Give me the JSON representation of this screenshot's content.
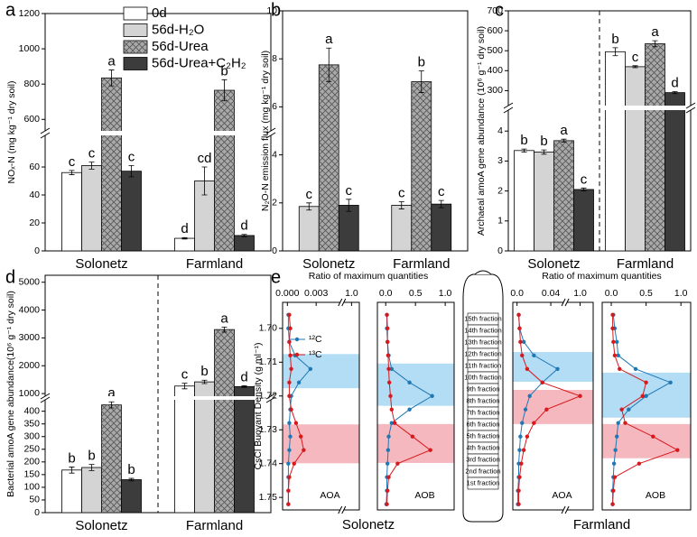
{
  "chart_data": [
    {
      "type": "bar",
      "panel_label": "a",
      "y_label": "NOₓ-N (mg kg⁻¹ dry soil)",
      "categories": [
        "Solonetz",
        "Farmland"
      ],
      "ylim": [
        0,
        1200
      ],
      "y_break": [
        82.6,
        535
      ],
      "yticks": [
        0,
        20,
        40,
        60,
        600,
        800,
        1000,
        1200
      ],
      "series": [
        {
          "name": "0d",
          "color": "#ffffff",
          "values": [
            56,
            9
          ],
          "errors": [
            1.5,
            0.5
          ],
          "letters": [
            "c",
            "d"
          ]
        },
        {
          "name": "56d-H₂O",
          "color": "#d4d4d4",
          "values": [
            61,
            50
          ],
          "errors": [
            2.5,
            10
          ],
          "letters": [
            "c",
            "cd"
          ]
        },
        {
          "name": "56d-Urea",
          "color": "#a9a9a9",
          "hatch": true,
          "values": [
            835,
            765
          ],
          "errors": [
            45,
            60
          ],
          "letters": [
            "a",
            "b"
          ]
        },
        {
          "name": "56d-Urea+C₂H₂",
          "color": "#3c3c3c",
          "values": [
            57,
            11
          ],
          "errors": [
            4,
            0.8
          ],
          "letters": [
            "c",
            "d"
          ]
        }
      ]
    },
    {
      "type": "bar",
      "panel_label": "b",
      "y_label": "N₂O-N emission flux (mg kg⁻¹ dry soil)",
      "categories": [
        "Solonetz",
        "Farmland"
      ],
      "ylim": [
        0,
        10
      ],
      "yticks": [
        0,
        2,
        4,
        6,
        8,
        10
      ],
      "series": [
        {
          "color": "#d4d4d4",
          "values": [
            1.85,
            1.9
          ],
          "errors": [
            0.15,
            0.15
          ],
          "letters": [
            "c",
            "c"
          ]
        },
        {
          "color": "#a9a9a9",
          "hatch": true,
          "values": [
            7.75,
            7.05
          ],
          "errors": [
            0.7,
            0.45
          ],
          "letters": [
            "a",
            "b"
          ]
        },
        {
          "color": "#3c3c3c",
          "values": [
            1.9,
            1.95
          ],
          "errors": [
            0.25,
            0.15
          ],
          "letters": [
            "c",
            "c"
          ]
        }
      ]
    },
    {
      "type": "bar",
      "panel_label": "c",
      "y_label": "Archaeal amoA gene abundance (10⁶ g⁻¹ dry soil)",
      "categories": [
        "Solonetz",
        "Farmland"
      ],
      "ylim": [
        0,
        700
      ],
      "y_break": [
        4.7,
        225
      ],
      "group_divider": true,
      "yticks": [
        0,
        1,
        2,
        3,
        4,
        300,
        400,
        500,
        600,
        700
      ],
      "series": [
        {
          "color": "#ffffff",
          "values": [
            3.35,
            495
          ],
          "errors": [
            0.05,
            20
          ],
          "letters": [
            "b",
            "b"
          ]
        },
        {
          "color": "#d4d4d4",
          "values": [
            3.3,
            420
          ],
          "errors": [
            0.07,
            5
          ],
          "letters": [
            "b",
            "c"
          ]
        },
        {
          "color": "#a9a9a9",
          "hatch": true,
          "values": [
            3.68,
            535
          ],
          "errors": [
            0.05,
            15
          ],
          "letters": [
            "a",
            "a"
          ]
        },
        {
          "color": "#3c3c3c",
          "values": [
            2.05,
            290
          ],
          "errors": [
            0.05,
            5
          ],
          "letters": [
            "c",
            "d"
          ]
        }
      ]
    },
    {
      "type": "bar",
      "panel_label": "d",
      "y_label": "Bacterial amoA gene abundance(10⁶ g⁻¹ dry soil)",
      "categories": [
        "Solonetz",
        "Farmland"
      ],
      "ylim": [
        0,
        5250
      ],
      "y_break": [
        445,
        905
      ],
      "group_divider": true,
      "yticks": [
        0,
        50,
        100,
        150,
        200,
        250,
        300,
        350,
        400,
        1000,
        2000,
        3000,
        4000,
        5000
      ],
      "series": [
        {
          "color": "#ffffff",
          "values": [
            168,
            1270
          ],
          "errors": [
            12,
            100
          ],
          "letters": [
            "b",
            "c"
          ]
        },
        {
          "color": "#d4d4d4",
          "values": [
            178,
            1420
          ],
          "errors": [
            12,
            60
          ],
          "letters": [
            "b",
            "b"
          ]
        },
        {
          "color": "#a9a9a9",
          "hatch": true,
          "values": [
            425,
            3300
          ],
          "errors": [
            12,
            90
          ],
          "letters": [
            "a",
            "a"
          ]
        },
        {
          "color": "#3c3c3c",
          "values": [
            130,
            1250
          ],
          "errors": [
            5,
            30
          ],
          "letters": [
            "b",
            "d"
          ]
        }
      ]
    },
    {
      "type": "profile",
      "panel_label": "e",
      "x_label": "Ratio of maximum quantities",
      "y_label": "CsCl Buoyant Density (g ml⁻¹)",
      "ylim": [
        1.6923,
        1.7537
      ],
      "y_inverted": true,
      "yticks": [
        {
          "value": 1.7,
          "label": "1.70"
        },
        1.71,
        1.72,
        1.73,
        1.74,
        1.75
      ],
      "series": [
        {
          "name": "¹²C",
          "color": "#1f78b4"
        },
        {
          "name": "¹³C",
          "color": "#d7191c"
        }
      ],
      "density": [
        1.696,
        1.7,
        1.704,
        1.708,
        1.712,
        1.716,
        1.72,
        1.724,
        1.728,
        1.732,
        1.736,
        1.74,
        1.744,
        1.748,
        1.752
      ],
      "fractions": [
        "15th fraction",
        "14th fraction",
        "13th fraction",
        "12th fraction",
        "11th fraction",
        "10th fraction",
        "9th fraction",
        "8th fraction",
        "7th fraction",
        "6th fraction",
        "5th fraction",
        "4th fraction",
        "3rd fraction",
        "2nd fraction",
        "1st fraction"
      ],
      "groups": [
        {
          "name": "Solonetz",
          "panels": [
            {
              "name": "AOA",
              "xlim": [
                -0.0005,
                1.05
              ],
              "x_break": [
                0.0055,
                0.95
              ],
              "xticks": [
                {
                  "value": 0,
                  "label": "0.000"
                },
                {
                  "value": 0.003,
                  "label": "0.003"
                },
                {
                  "value": 1,
                  "label": "1.0"
                }
              ],
              "bands": [
                {
                  "color": "#b3dcf5",
                  "range": [
                    1.7076,
                    1.7177
                  ]
                },
                {
                  "color": "#f6b8bf",
                  "range": [
                    1.7284,
                    1.7399
                  ]
                }
              ],
              "series": [
                {
                  "values": [
                    0.0001,
                    0.0001,
                    0.0002,
                    0.0008,
                    0.0024,
                    0.0012,
                    0.0004,
                    0.0003,
                    0.0002,
                    0.0003,
                    0.0002,
                    0.0001,
                    0.0001,
                    0.0001,
                    0.0001
                  ]
                },
                {
                  "values": [
                    0.0002,
                    0.0003,
                    0.0002,
                    0.0003,
                    0.0004,
                    0.0002,
                    0.0002,
                    0.0004,
                    0.0009,
                    0.0014,
                    0.0017,
                    0.0007,
                    0.0002,
                    0.0001,
                    0.0001
                  ]
                }
              ]
            },
            {
              "name": "AOB",
              "xlim": [
                -0.14,
                1.15
              ],
              "xticks": [
                {
                  "value": 0,
                  "label": "0.0"
                },
                0.5,
                {
                  "value": 1,
                  "label": "1.0"
                }
              ],
              "bands": [
                {
                  "color": "#b3dcf5",
                  "range": [
                    1.7104,
                    1.7229
                  ]
                },
                {
                  "color": "#f6b8bf",
                  "range": [
                    1.7283,
                    1.7398
                  ]
                }
              ],
              "series": [
                {
                  "values": [
                    0.02,
                    0.02,
                    0.03,
                    0.05,
                    0.1,
                    0.4,
                    0.78,
                    0.4,
                    0.1,
                    0.05,
                    0.04,
                    0.03,
                    0.02,
                    0.02,
                    0.01
                  ]
                },
                {
                  "values": [
                    0.02,
                    0.03,
                    0.03,
                    0.04,
                    0.05,
                    0.06,
                    0.08,
                    0.1,
                    0.15,
                    0.45,
                    0.75,
                    0.2,
                    0.05,
                    0.03,
                    0.02
                  ]
                }
              ]
            }
          ]
        },
        {
          "name": "Farmland",
          "panels": [
            {
              "name": "AOA",
              "xlim": [
                -0.005,
                1.05
              ],
              "x_break": [
                0.055,
                0.95
              ],
              "xticks": [
                {
                  "value": 0,
                  "label": "0.0"
                },
                0.04,
                {
                  "value": 1,
                  "label": "1.0"
                }
              ],
              "bands": [
                {
                  "color": "#b3dcf5",
                  "range": [
                    1.707,
                    1.7158
                  ]
                },
                {
                  "color": "#f6b8bf",
                  "range": [
                    1.7182,
                    1.7283
                  ]
                }
              ],
              "series": [
                {
                  "values": [
                    0.002,
                    0.003,
                    0.008,
                    0.02,
                    0.048,
                    0.03,
                    0.015,
                    0.01,
                    0.006,
                    0.004,
                    0.003,
                    0.002,
                    0.002,
                    0.001,
                    0.001
                  ]
                },
                {
                  "values": [
                    0.002,
                    0.003,
                    0.004,
                    0.006,
                    0.012,
                    0.03,
                    1.0,
                    0.035,
                    0.02,
                    0.012,
                    0.008,
                    0.005,
                    0.003,
                    0.002,
                    0.002
                  ]
                }
              ]
            },
            {
              "name": "AOB",
              "xlim": [
                -0.13,
                1.14
              ],
              "xticks": [
                {
                  "value": 0,
                  "label": "0.0"
                },
                0.5,
                {
                  "value": 1,
                  "label": "1.0"
                }
              ],
              "bands": [
                {
                  "color": "#b3dcf5",
                  "range": [
                    1.7131,
                    1.7264
                  ]
                },
                {
                  "color": "#f6b8bf",
                  "range": [
                    1.7283,
                    1.7384
                  ]
                }
              ],
              "series": [
                {
                  "values": [
                    0.03,
                    0.05,
                    0.08,
                    0.1,
                    0.35,
                    0.85,
                    0.5,
                    0.25,
                    0.1,
                    0.08,
                    0.06,
                    0.04,
                    0.03,
                    0.02,
                    0.02
                  ]
                },
                {
                  "values": [
                    0.02,
                    0.02,
                    0.03,
                    0.05,
                    0.12,
                    0.5,
                    0.45,
                    0.15,
                    0.2,
                    0.6,
                    0.95,
                    0.4,
                    0.05,
                    0.03,
                    0.02
                  ]
                }
              ]
            }
          ]
        }
      ]
    }
  ]
}
